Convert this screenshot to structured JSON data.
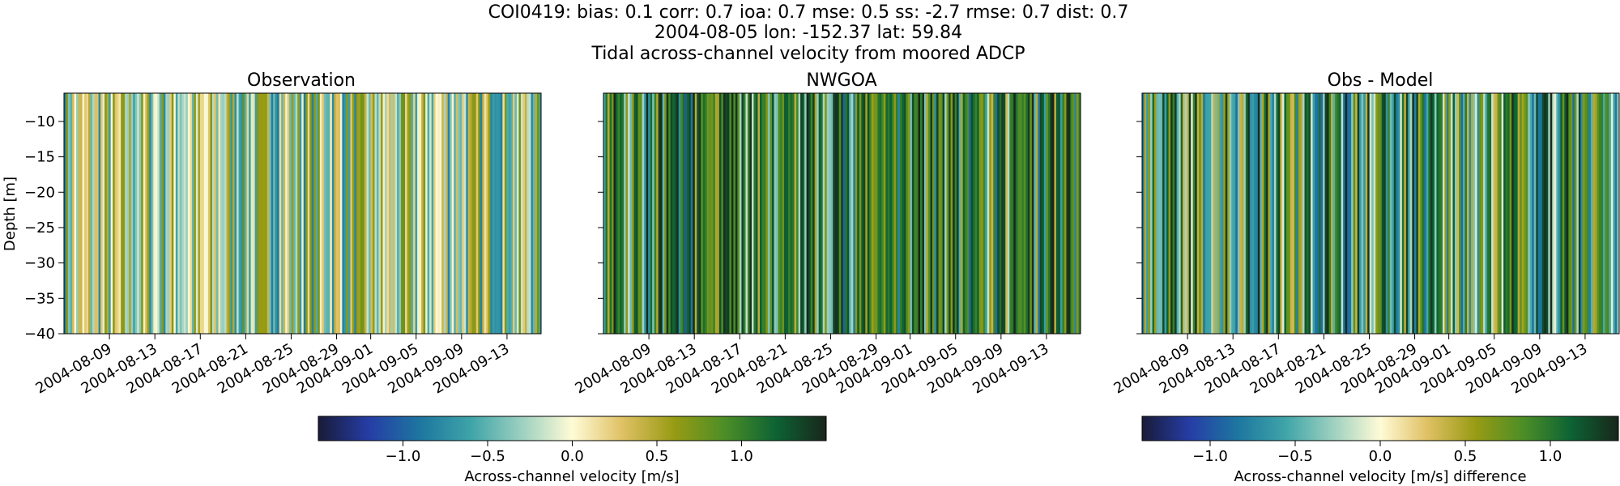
{
  "figure": {
    "title_lines": [
      "COI0419: bias: 0.1  corr: 0.7  ioa: 0.7  mse: 0.5  ss: -2.7  rmse: 0.7  dist: 0.7",
      "2004-08-05 lon: -152.37 lat: 59.84",
      "Tidal across-channel velocity from moored ADCP"
    ]
  },
  "chart_data": [
    {
      "type": "heatmap",
      "title": "Observation",
      "ylabel": "Depth [m]",
      "xlabel": "",
      "ylim": [
        -40,
        -6
      ],
      "yticks": [
        -10,
        -15,
        -20,
        -25,
        -30,
        -35,
        -40
      ],
      "xticks": [
        "2004-08-09",
        "2004-08-13",
        "2004-08-17",
        "2004-08-21",
        "2004-08-25",
        "2004-08-29",
        "2004-09-01",
        "2004-09-05",
        "2004-09-09",
        "2004-09-13"
      ],
      "colormap": "delta (blue-teal-cream-yellow-green-dark)",
      "vlim": [
        -1.5,
        1.5
      ]
    },
    {
      "type": "heatmap",
      "title": "NWGOA",
      "ylabel": "",
      "xlabel": "",
      "ylim": [
        -40,
        -6
      ],
      "xticks": [
        "2004-08-09",
        "2004-08-13",
        "2004-08-17",
        "2004-08-21",
        "2004-08-25",
        "2004-08-29",
        "2004-09-01",
        "2004-09-05",
        "2004-09-09",
        "2004-09-13"
      ],
      "colormap": "delta (blue-teal-cream-yellow-green-dark)",
      "vlim": [
        -1.5,
        1.5
      ]
    },
    {
      "type": "heatmap",
      "title": "Obs - Model",
      "ylabel": "",
      "xlabel": "",
      "ylim": [
        -40,
        -6
      ],
      "xticks": [
        "2004-08-09",
        "2004-08-13",
        "2004-08-17",
        "2004-08-21",
        "2004-08-25",
        "2004-08-29",
        "2004-09-01",
        "2004-09-05",
        "2004-09-09",
        "2004-09-13"
      ],
      "colormap": "delta (blue-teal-cream-yellow-green-dark)",
      "vlim": [
        -1.4,
        1.4
      ]
    }
  ],
  "colorbars": [
    {
      "label": "Across-channel velocity [m/s]",
      "ticks": [
        "−1.0",
        "−0.5",
        "0.0",
        "0.5",
        "1.0"
      ],
      "tick_values": [
        -1.0,
        -0.5,
        0.0,
        0.5,
        1.0
      ],
      "range": [
        -1.5,
        1.5
      ]
    },
    {
      "label": "Across-channel velocity [m/s] difference",
      "ticks": [
        "−1.0",
        "−0.5",
        "0.0",
        "0.5",
        "1.0"
      ],
      "tick_values": [
        -1.0,
        -0.5,
        0.0,
        0.5,
        1.0
      ],
      "range": [
        -1.4,
        1.4
      ]
    }
  ],
  "colormap_stops": [
    "#191b38",
    "#263da6",
    "#1d76a0",
    "#3ea4a8",
    "#9cd0c0",
    "#fffbd6",
    "#dfc063",
    "#989b14",
    "#4c8e26",
    "#0d6334",
    "#18261b"
  ]
}
